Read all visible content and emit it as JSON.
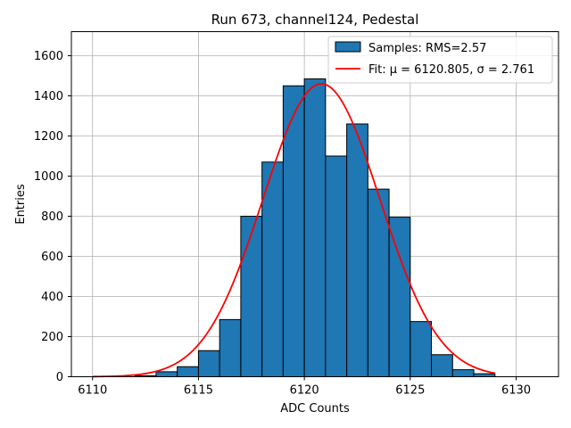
{
  "chart_data": {
    "type": "bar",
    "title": "Run 673, channel124, Pedestal",
    "xlabel": "ADC Counts",
    "ylabel": "Entries",
    "xlim": [
      6109.0,
      6132.0
    ],
    "ylim": [
      0,
      1720
    ],
    "xticks": [
      6110,
      6115,
      6120,
      6125,
      6130
    ],
    "yticks": [
      0,
      200,
      400,
      600,
      800,
      1000,
      1200,
      1400,
      1600
    ],
    "grid": true,
    "legend_position": "top-right",
    "histogram": {
      "name": "Samples: RMS=2.57",
      "color": "#1f77b4",
      "edgecolor": "#000000",
      "bin_width": 1,
      "bin_starts": [
        6112,
        6113,
        6114,
        6115,
        6116,
        6117,
        6118,
        6119,
        6120,
        6121,
        6122,
        6123,
        6124,
        6125,
        6126,
        6127,
        6128
      ],
      "values": [
        5,
        25,
        50,
        130,
        285,
        800,
        1070,
        1450,
        1485,
        1100,
        1260,
        935,
        795,
        275,
        110,
        35,
        15
      ]
    },
    "fit": {
      "name": "Fit: μ = 6120.805, σ = 2.761",
      "color": "#ff0000",
      "mu": 6120.805,
      "sigma": 2.761,
      "amplitude": 1460,
      "x_range": [
        6110,
        6129
      ]
    }
  }
}
